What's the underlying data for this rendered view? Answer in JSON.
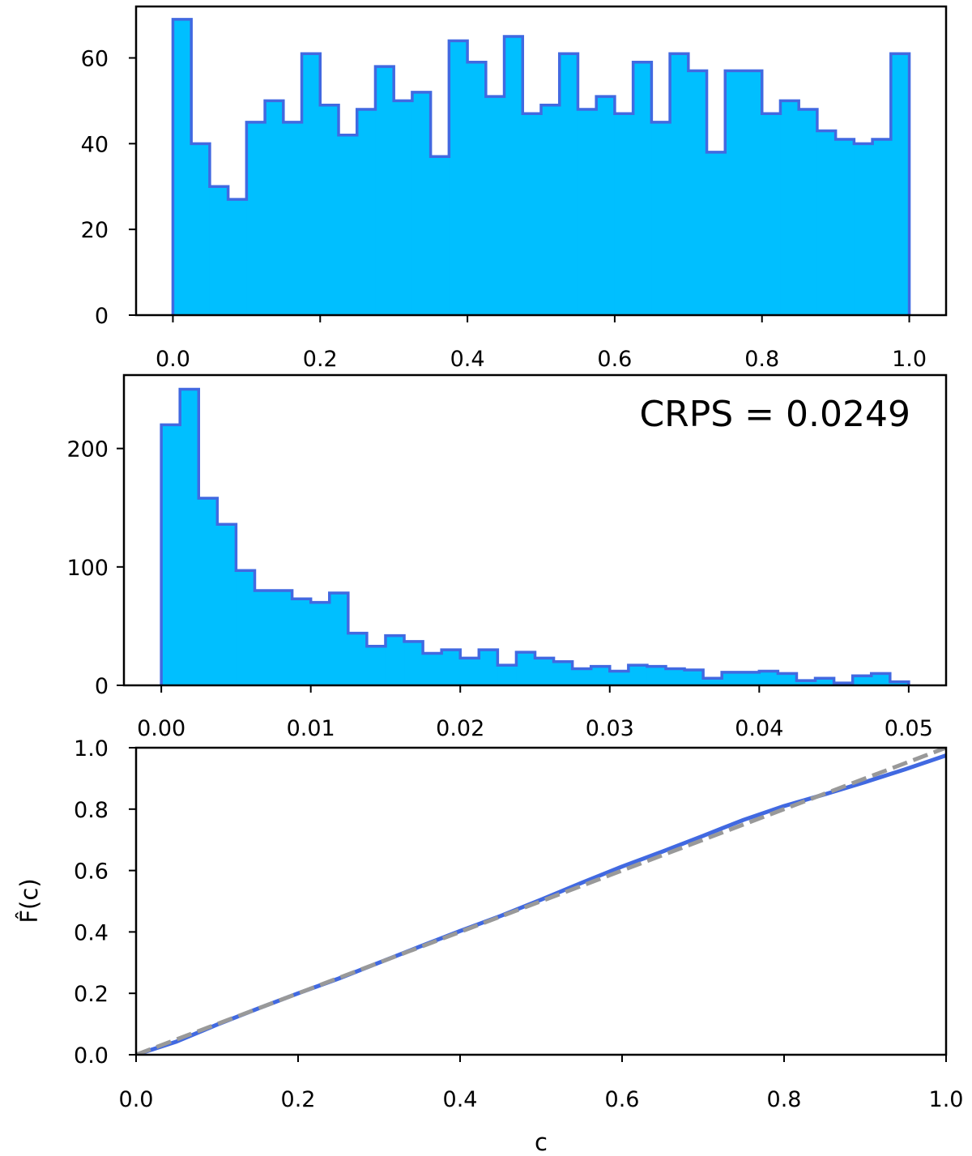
{
  "colors": {
    "hist_fill": "#00bfff",
    "hist_edge": "#4169e1",
    "cdf_line": "#4169e1",
    "reference_line": "#999999"
  },
  "chart_data": [
    {
      "type": "bar",
      "style": "step-filled histogram",
      "bin_edges_range": [
        0.0,
        1.0
      ],
      "bin_width": 0.025,
      "values": [
        69,
        40,
        30,
        27,
        45,
        50,
        45,
        61,
        49,
        42,
        48,
        58,
        50,
        52,
        37,
        64,
        59,
        51,
        65,
        47,
        49,
        61,
        48,
        51,
        47,
        59,
        45,
        61,
        57,
        38,
        57,
        57,
        47,
        50,
        48,
        43,
        41,
        40,
        41,
        61
      ],
      "xlim": [
        -0.05,
        1.05
      ],
      "ylim": [
        0,
        72
      ],
      "xticks": [
        "0.0",
        "0.2",
        "0.4",
        "0.6",
        "0.8",
        "1.0"
      ],
      "yticks": [
        "0",
        "20",
        "40",
        "60"
      ],
      "xlabel": "",
      "ylabel": "",
      "grid": false
    },
    {
      "type": "bar",
      "style": "step-filled histogram",
      "bin_edges_range": [
        0.0,
        0.05
      ],
      "bin_width": 0.00125,
      "values": [
        220,
        250,
        158,
        136,
        97,
        80,
        80,
        73,
        70,
        78,
        44,
        33,
        42,
        37,
        27,
        30,
        23,
        30,
        17,
        28,
        23,
        20,
        14,
        16,
        12,
        17,
        16,
        14,
        13,
        6,
        11,
        11,
        12,
        10,
        4,
        6,
        2,
        8,
        10,
        3
      ],
      "xlim": [
        -0.0025,
        0.0525
      ],
      "ylim": [
        0,
        262
      ],
      "xticks": [
        "0.00",
        "0.01",
        "0.02",
        "0.03",
        "0.04",
        "0.05"
      ],
      "yticks": [
        "0",
        "100",
        "200"
      ],
      "annotation": "CRPS = 0.0249",
      "xlabel": "",
      "ylabel": "",
      "grid": false
    },
    {
      "type": "line",
      "xlabel": "c",
      "ylabel": "F̂(c)",
      "xlim": [
        0.0,
        1.0
      ],
      "ylim": [
        0.0,
        1.0
      ],
      "xticks": [
        "0.0",
        "0.2",
        "0.4",
        "0.6",
        "0.8",
        "1.0"
      ],
      "yticks": [
        "0.0",
        "0.2",
        "0.4",
        "0.6",
        "0.8",
        "1.0"
      ],
      "grid": false,
      "series": [
        {
          "style": "solid",
          "x": [
            0.0,
            0.05,
            0.1,
            0.15,
            0.2,
            0.25,
            0.3,
            0.35,
            0.4,
            0.45,
            0.5,
            0.55,
            0.6,
            0.65,
            0.7,
            0.75,
            0.8,
            0.85,
            0.9,
            0.95,
            1.0
          ],
          "y": [
            0.0,
            0.043,
            0.098,
            0.15,
            0.2,
            0.248,
            0.3,
            0.352,
            0.403,
            0.452,
            0.505,
            0.56,
            0.613,
            0.662,
            0.713,
            0.765,
            0.81,
            0.848,
            0.888,
            0.93,
            0.975
          ]
        },
        {
          "style": "dashed",
          "x": [
            0.0,
            1.0
          ],
          "y": [
            0.0,
            1.0
          ]
        }
      ]
    }
  ]
}
